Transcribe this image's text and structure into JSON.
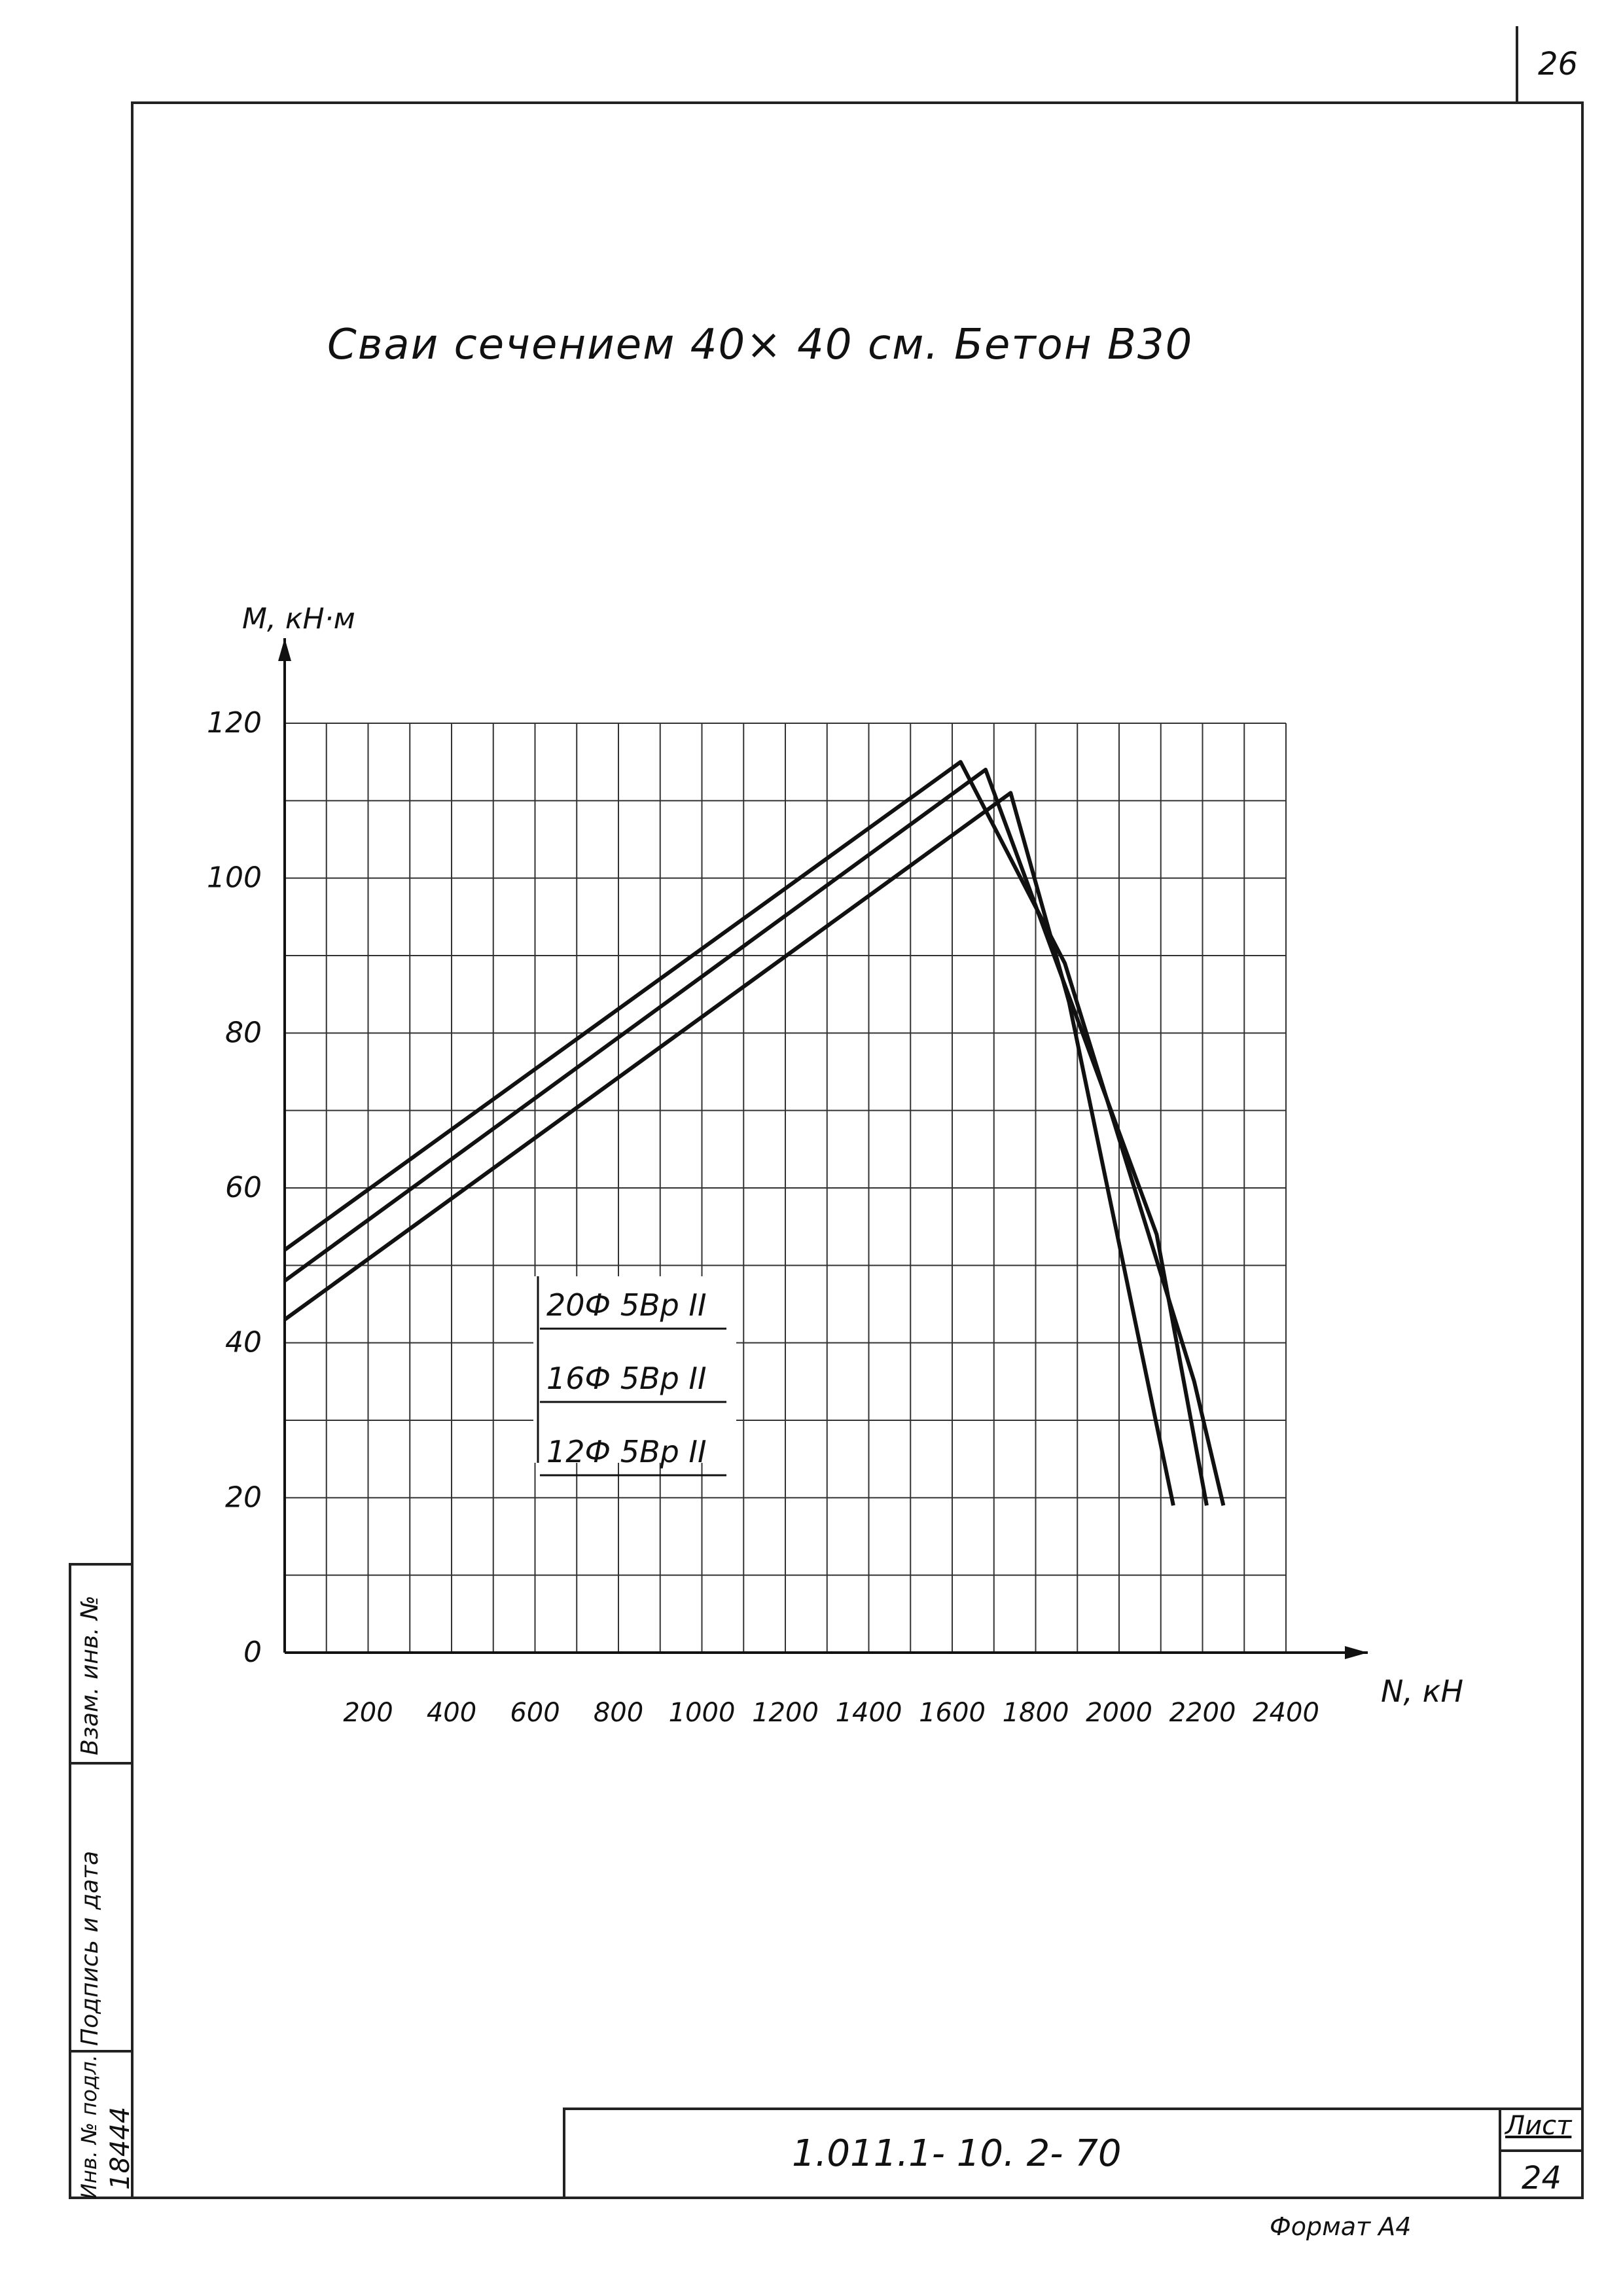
{
  "page": {
    "number": "26",
    "title": "Сваи сечением   40× 40 см.   Бетон  В30"
  },
  "chart_data": {
    "type": "line",
    "title": "Сваи сечением   40× 40 см.   Бетон  В30",
    "xlabel": "N, кН",
    "ylabel": "М, кН·м",
    "xlim": [
      0,
      2400
    ],
    "ylim": [
      0,
      120
    ],
    "x_ticks": [
      "200",
      "400",
      "600",
      "800",
      "1000",
      "1200",
      "1400",
      "1600",
      "1800",
      "2000",
      "2200",
      "2400"
    ],
    "y_ticks": [
      "0",
      "20",
      "40",
      "60",
      "80",
      "100",
      "120"
    ],
    "grid": true,
    "series": [
      {
        "name": "20Ф 5Вр II",
        "points": [
          [
            0,
            52
          ],
          [
            1620,
            115
          ],
          [
            1870,
            89
          ],
          [
            2180,
            35
          ],
          [
            2250,
            19
          ]
        ]
      },
      {
        "name": "16Ф 5Вр II",
        "points": [
          [
            0,
            48
          ],
          [
            1680,
            114
          ],
          [
            2090,
            54
          ],
          [
            2210,
            19
          ]
        ]
      },
      {
        "name": "12Ф 5Вр II",
        "points": [
          [
            0,
            43
          ],
          [
            1740,
            111
          ],
          [
            1880,
            84
          ],
          [
            2130,
            19
          ]
        ]
      }
    ],
    "legend": {
      "placement": "center-left",
      "entries": [
        "20Ф 5Вр II",
        "16Ф 5Вр II",
        "12Ф 5Вр II"
      ]
    }
  },
  "stamp": {
    "inv_original": "Инв. № подл.",
    "inv_original_value": "18444",
    "signature_date": "Подпись и дата",
    "replacement": "Взам. инв. №"
  },
  "title_block": {
    "doc_code": "1.011.1- 10. 2-           70",
    "sheet_label": "Лист",
    "sheet_number": "24"
  },
  "format_label": "Формат А4"
}
